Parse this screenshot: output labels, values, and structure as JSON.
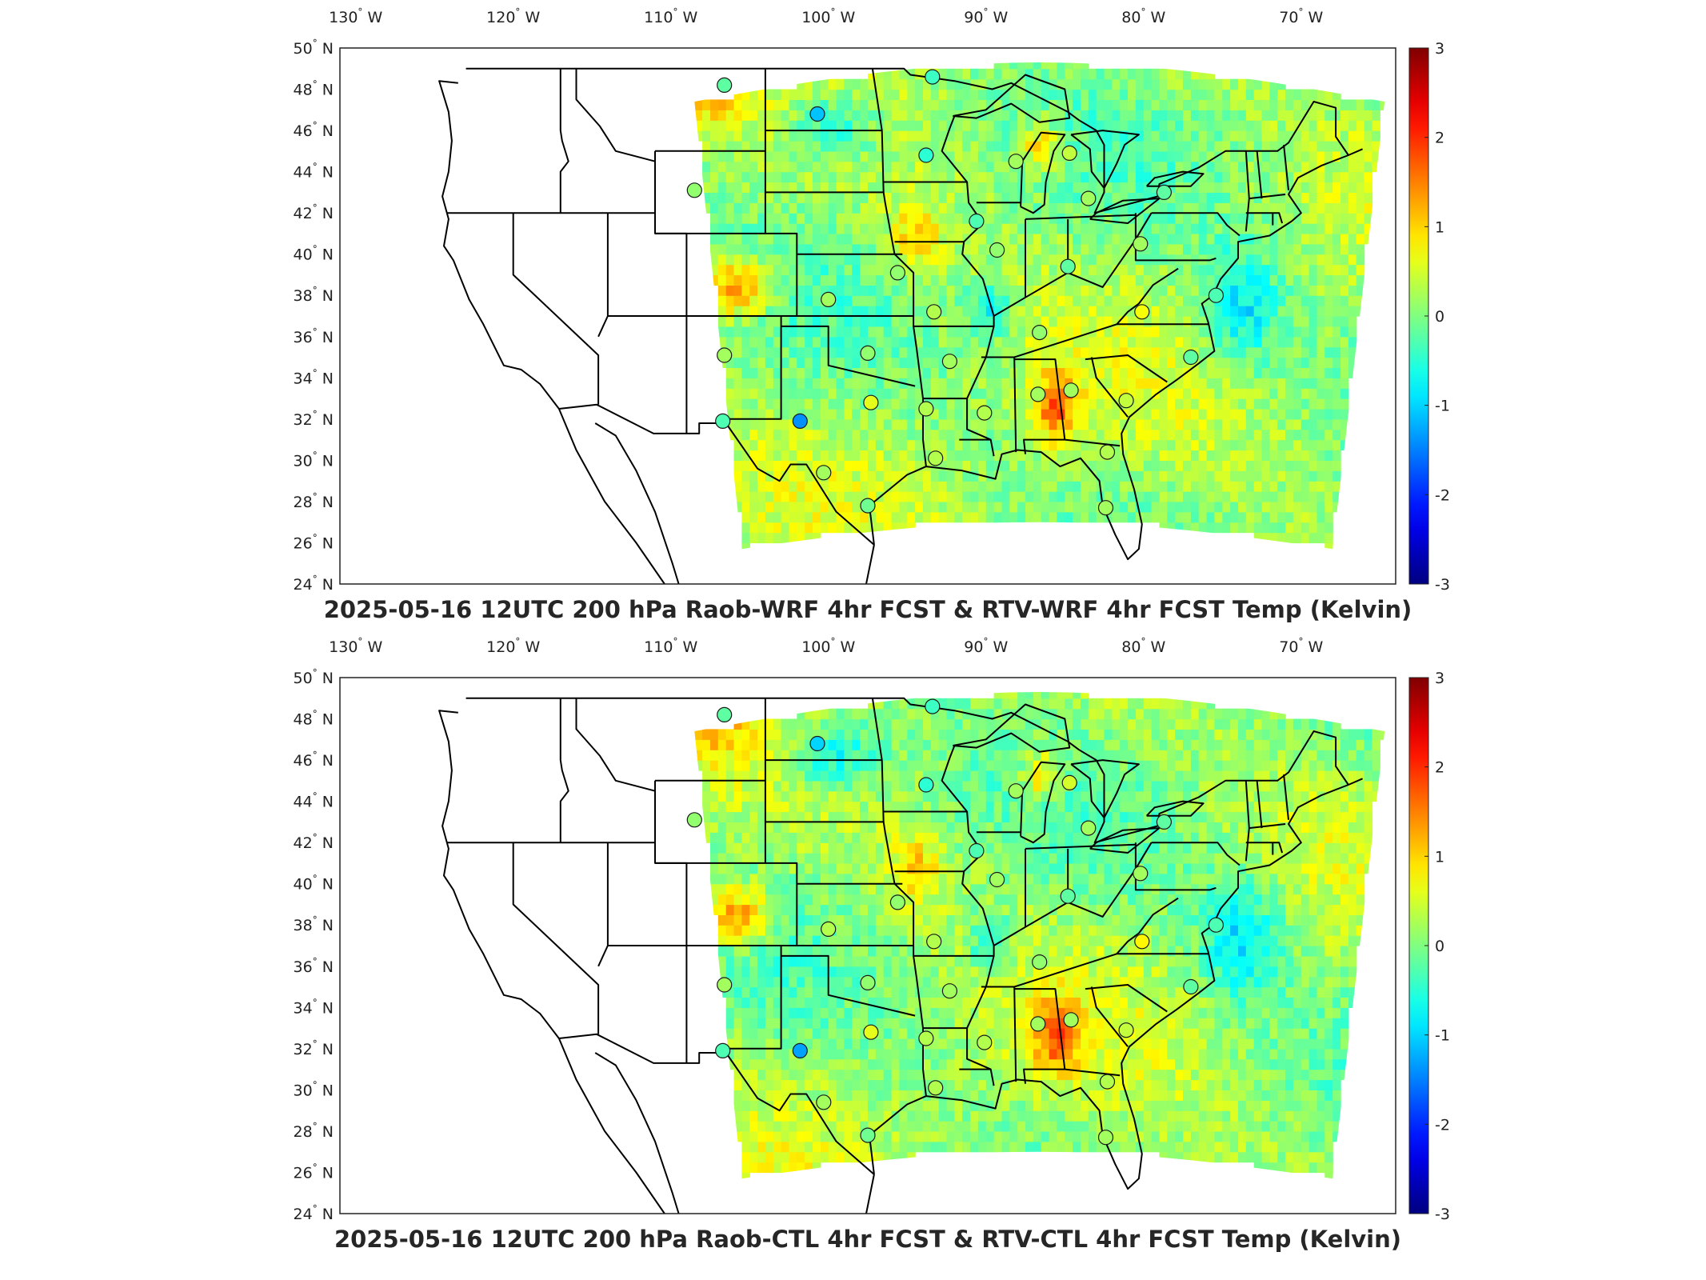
{
  "panels": [
    {
      "id": "top",
      "title": "2025-05-16 12UTC 200 hPa Raob-WRF 4hr FCST & RTV-WRF 4hr FCST Temp (Kelvin)",
      "stations": [
        {
          "lon": -106.6,
          "lat": 48.2,
          "val": -0.2
        },
        {
          "lon": -100.7,
          "lat": 46.8,
          "val": -1.1
        },
        {
          "lon": -93.4,
          "lat": 48.6,
          "val": -0.4
        },
        {
          "lon": -93.8,
          "lat": 44.8,
          "val": -0.5
        },
        {
          "lon": -88.1,
          "lat": 44.5,
          "val": 0.2
        },
        {
          "lon": -84.7,
          "lat": 44.9,
          "val": 0.4
        },
        {
          "lon": -83.5,
          "lat": 42.7,
          "val": 0.2
        },
        {
          "lon": -78.7,
          "lat": 43.0,
          "val": -0.2
        },
        {
          "lon": -108.5,
          "lat": 43.1,
          "val": 0.1
        },
        {
          "lon": -90.6,
          "lat": 41.6,
          "val": -0.3
        },
        {
          "lon": -89.3,
          "lat": 40.2,
          "val": 0.1
        },
        {
          "lon": -80.2,
          "lat": 40.5,
          "val": 0.2
        },
        {
          "lon": -84.8,
          "lat": 39.4,
          "val": -0.2
        },
        {
          "lon": -95.6,
          "lat": 39.1,
          "val": 0.1
        },
        {
          "lon": -100.0,
          "lat": 37.8,
          "val": 0.2
        },
        {
          "lon": -93.3,
          "lat": 37.2,
          "val": 0.3
        },
        {
          "lon": -86.6,
          "lat": 36.2,
          "val": 0.1
        },
        {
          "lon": -80.1,
          "lat": 37.2,
          "val": 0.7
        },
        {
          "lon": -106.6,
          "lat": 35.1,
          "val": 0.2
        },
        {
          "lon": -97.5,
          "lat": 35.2,
          "val": 0.1
        },
        {
          "lon": -92.3,
          "lat": 34.8,
          "val": 0.2
        },
        {
          "lon": -97.3,
          "lat": 32.8,
          "val": 0.6
        },
        {
          "lon": -93.8,
          "lat": 32.5,
          "val": 0.3
        },
        {
          "lon": -90.1,
          "lat": 32.3,
          "val": 0.3
        },
        {
          "lon": -86.7,
          "lat": 33.2,
          "val": 0.2
        },
        {
          "lon": -84.6,
          "lat": 33.4,
          "val": 0.2
        },
        {
          "lon": -81.1,
          "lat": 32.9,
          "val": 0.4
        },
        {
          "lon": -106.7,
          "lat": 31.9,
          "val": -0.3
        },
        {
          "lon": -101.8,
          "lat": 31.9,
          "val": -1.4
        },
        {
          "lon": -100.3,
          "lat": 29.4,
          "val": 0.2
        },
        {
          "lon": -97.5,
          "lat": 27.8,
          "val": -0.1
        },
        {
          "lon": -93.2,
          "lat": 30.1,
          "val": 0.3
        },
        {
          "lon": -82.3,
          "lat": 30.4,
          "val": 0.3
        },
        {
          "lon": -82.4,
          "lat": 27.7,
          "val": 0.2
        },
        {
          "lon": -77.0,
          "lat": 35.0,
          "val": -0.2
        },
        {
          "lon": -75.4,
          "lat": 38.0,
          "val": -0.3
        }
      ]
    },
    {
      "id": "bottom",
      "title": "2025-05-16 12UTC 200 hPa Raob-CTL 4hr FCST & RTV-CTL 4hr FCST Temp (Kelvin)",
      "stations": [
        {
          "lon": -106.6,
          "lat": 48.2,
          "val": -0.2
        },
        {
          "lon": -100.7,
          "lat": 46.8,
          "val": -1.0
        },
        {
          "lon": -93.4,
          "lat": 48.6,
          "val": -0.4
        },
        {
          "lon": -93.8,
          "lat": 44.8,
          "val": -0.5
        },
        {
          "lon": -88.1,
          "lat": 44.5,
          "val": 0.2
        },
        {
          "lon": -84.7,
          "lat": 44.9,
          "val": 0.5
        },
        {
          "lon": -83.5,
          "lat": 42.7,
          "val": 0.2
        },
        {
          "lon": -78.7,
          "lat": 43.0,
          "val": -0.2
        },
        {
          "lon": -108.5,
          "lat": 43.1,
          "val": 0.1
        },
        {
          "lon": -90.6,
          "lat": 41.6,
          "val": -0.3
        },
        {
          "lon": -89.3,
          "lat": 40.2,
          "val": 0.2
        },
        {
          "lon": -80.2,
          "lat": 40.5,
          "val": 0.2
        },
        {
          "lon": -84.8,
          "lat": 39.4,
          "val": -0.2
        },
        {
          "lon": -95.6,
          "lat": 39.1,
          "val": 0.1
        },
        {
          "lon": -100.0,
          "lat": 37.8,
          "val": 0.3
        },
        {
          "lon": -93.3,
          "lat": 37.2,
          "val": 0.3
        },
        {
          "lon": -86.6,
          "lat": 36.2,
          "val": 0.1
        },
        {
          "lon": -80.1,
          "lat": 37.2,
          "val": 0.8
        },
        {
          "lon": -106.6,
          "lat": 35.1,
          "val": 0.2
        },
        {
          "lon": -97.5,
          "lat": 35.2,
          "val": 0.1
        },
        {
          "lon": -92.3,
          "lat": 34.8,
          "val": 0.2
        },
        {
          "lon": -97.3,
          "lat": 32.8,
          "val": 0.6
        },
        {
          "lon": -93.8,
          "lat": 32.5,
          "val": 0.3
        },
        {
          "lon": -90.1,
          "lat": 32.3,
          "val": 0.3
        },
        {
          "lon": -86.7,
          "lat": 33.2,
          "val": 0.2
        },
        {
          "lon": -84.6,
          "lat": 33.4,
          "val": 0.2
        },
        {
          "lon": -81.1,
          "lat": 32.9,
          "val": 0.4
        },
        {
          "lon": -106.7,
          "lat": 31.9,
          "val": -0.3
        },
        {
          "lon": -101.8,
          "lat": 31.9,
          "val": -1.3
        },
        {
          "lon": -100.3,
          "lat": 29.4,
          "val": 0.2
        },
        {
          "lon": -97.5,
          "lat": 27.8,
          "val": -0.1
        },
        {
          "lon": -93.2,
          "lat": 30.1,
          "val": 0.3
        },
        {
          "lon": -82.3,
          "lat": 30.4,
          "val": 0.3
        },
        {
          "lon": -82.4,
          "lat": 27.7,
          "val": 0.2
        },
        {
          "lon": -77.0,
          "lat": 35.0,
          "val": -0.2
        },
        {
          "lon": -75.4,
          "lat": 38.0,
          "val": -0.3
        }
      ]
    }
  ],
  "lon_ticks": [
    {
      "value": -130,
      "num": "130",
      "hemi": "W"
    },
    {
      "value": -120,
      "num": "120",
      "hemi": "W"
    },
    {
      "value": -110,
      "num": "110",
      "hemi": "W"
    },
    {
      "value": -100,
      "num": "100",
      "hemi": "W"
    },
    {
      "value": -90,
      "num": "90",
      "hemi": "W"
    },
    {
      "value": -80,
      "num": "80",
      "hemi": "W"
    },
    {
      "value": -70,
      "num": "70",
      "hemi": "W"
    }
  ],
  "lat_ticks": [
    {
      "value": 50,
      "num": "50",
      "hemi": "N"
    },
    {
      "value": 48,
      "num": "48",
      "hemi": "N"
    },
    {
      "value": 46,
      "num": "46",
      "hemi": "N"
    },
    {
      "value": 44,
      "num": "44",
      "hemi": "N"
    },
    {
      "value": 42,
      "num": "42",
      "hemi": "N"
    },
    {
      "value": 40,
      "num": "40",
      "hemi": "N"
    },
    {
      "value": 38,
      "num": "38",
      "hemi": "N"
    },
    {
      "value": 36,
      "num": "36",
      "hemi": "N"
    },
    {
      "value": 34,
      "num": "34",
      "hemi": "N"
    },
    {
      "value": 32,
      "num": "32",
      "hemi": "N"
    },
    {
      "value": 30,
      "num": "30",
      "hemi": "N"
    },
    {
      "value": 28,
      "num": "28",
      "hemi": "N"
    },
    {
      "value": 26,
      "num": "26",
      "hemi": "N"
    },
    {
      "value": 24,
      "num": "24",
      "hemi": "N"
    }
  ],
  "degree_symbol": "°",
  "colorbar": {
    "min": -3,
    "max": 3,
    "ticks": [
      "3",
      "2",
      "1",
      "0",
      "-1",
      "-2",
      "-3"
    ],
    "colormap": "jet"
  },
  "map_extent": {
    "lon": [
      -131,
      -64
    ],
    "lat": [
      24,
      50
    ]
  }
}
